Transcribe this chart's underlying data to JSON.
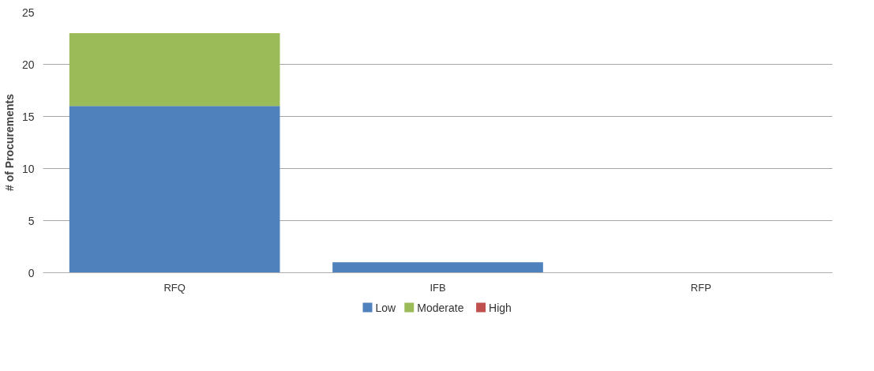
{
  "chart_data": {
    "type": "bar",
    "ylabel": "# of Procurements",
    "categories": [
      "RFQ",
      "IFB",
      "RFP"
    ],
    "stacked": true,
    "series": [
      {
        "name": "Low",
        "color": "#4f81bd",
        "values": [
          16,
          1,
          0
        ]
      },
      {
        "name": "Moderate",
        "color": "#9bbb59",
        "values": [
          7,
          0,
          0
        ]
      },
      {
        "name": "High",
        "color": "#c0504d",
        "values": [
          0,
          0,
          0
        ]
      }
    ],
    "ylim": [
      0,
      25
    ],
    "yticks": [
      0,
      5,
      10,
      15,
      20,
      25
    ],
    "grid": "y",
    "legend": "bottom"
  }
}
